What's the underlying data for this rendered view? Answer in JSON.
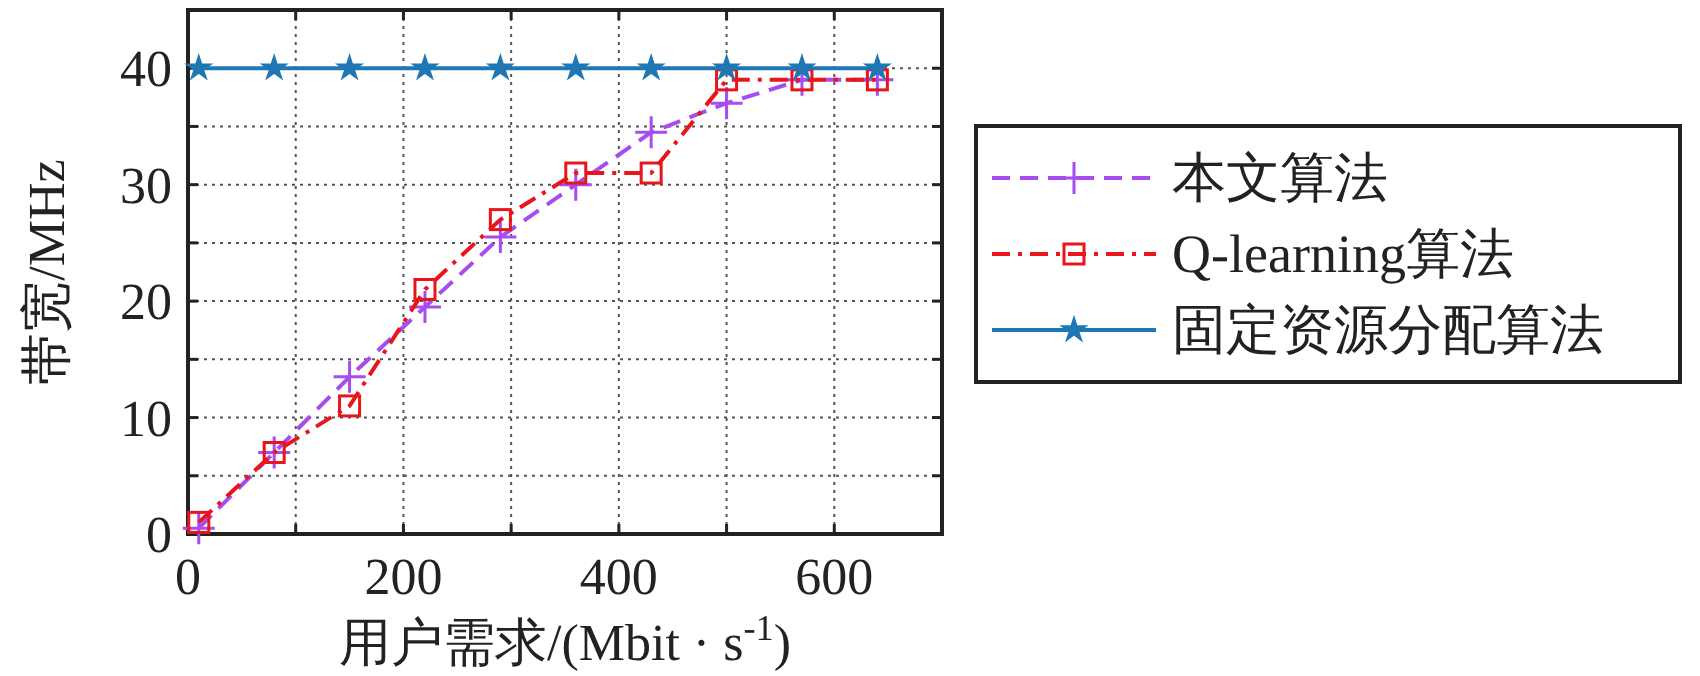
{
  "chart_data": {
    "type": "line",
    "xlabel": "用户需求/(Mbit · s$^{-1}$)",
    "ylabel": "带宽/MHz",
    "x": [
      10,
      80,
      150,
      220,
      290,
      360,
      430,
      500,
      570,
      640
    ],
    "xlim": [
      0,
      700
    ],
    "xticks": [
      0,
      {
        "value": 100,
        "label": null
      },
      200,
      {
        "value": 300,
        "label": null
      },
      400,
      {
        "value": 500,
        "label": null
      },
      600,
      {
        "value": 700,
        "label": null
      }
    ],
    "ylim": [
      0,
      45
    ],
    "yticks": [
      0,
      {
        "value": 5,
        "label": null
      },
      10,
      {
        "value": 15,
        "label": null
      },
      20,
      {
        "value": 25,
        "label": null
      },
      30,
      {
        "value": 35,
        "label": null
      },
      40,
      {
        "value": 45,
        "label": null
      }
    ],
    "grid": true,
    "legend": "right",
    "series": [
      {
        "name": "本文算法",
        "color": "#a64cf0",
        "marker": "cross",
        "line_style": "dashed",
        "values": [
          0.5,
          7,
          13.5,
          19.5,
          25.5,
          30,
          34.5,
          37,
          39,
          39
        ]
      },
      {
        "name": "Q-learning算法",
        "color": "#e8161b",
        "marker": "square",
        "line_style": "dashdot",
        "values": [
          1,
          7,
          11,
          21,
          27,
          31,
          31,
          39,
          39,
          39
        ]
      },
      {
        "name": "固定资源分配算法",
        "color": "#1f77b4",
        "marker": "star",
        "line_style": "solid",
        "values": [
          40,
          40,
          40,
          40,
          40,
          40,
          40,
          40,
          40,
          40
        ]
      }
    ]
  }
}
